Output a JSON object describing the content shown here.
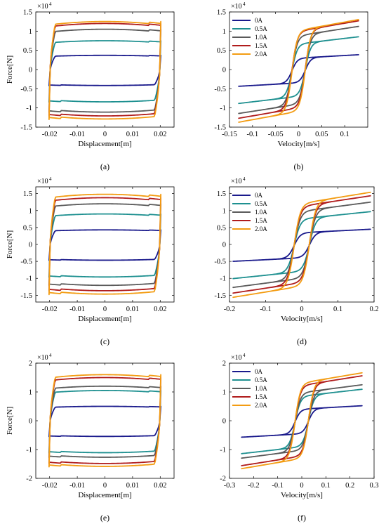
{
  "colors": {
    "0A": "#1a1a8c",
    "0.5A": "#1e9090",
    "1.0A": "#5a5a5a",
    "1.5A": "#b01c1c",
    "2.0A": "#f39c12"
  },
  "chart_data": [
    {
      "id": "a",
      "type": "line",
      "panel_label": "(a)",
      "xlabel": "Displacement[m]",
      "ylabel": "Force[N]",
      "exponent": "4",
      "xlim": [
        -0.025,
        0.025
      ],
      "ylim": [
        -1.5,
        1.5
      ],
      "xticks": [
        -0.02,
        -0.01,
        0,
        0.01,
        0.02
      ],
      "xtick_labels": [
        "-0.02",
        "-0.01",
        "0",
        "0.01",
        "0.02"
      ],
      "yticks": [
        -1.5,
        -1,
        -0.5,
        0,
        0.5,
        1,
        1.5
      ],
      "ytick_labels": [
        "-1.5",
        "-1",
        "-0.5",
        "0",
        "0.5",
        "1",
        "1.5"
      ],
      "legend": false,
      "series": [
        {
          "name": "0A",
          "values": [
            0.37,
            -0.42
          ]
        },
        {
          "name": "0.5A",
          "values": [
            0.75,
            -0.85
          ]
        },
        {
          "name": "1.0A",
          "values": [
            1.05,
            -1.12
          ]
        },
        {
          "name": "1.5A",
          "values": [
            1.2,
            -1.22
          ]
        },
        {
          "name": "2.0A",
          "values": [
            1.25,
            -1.3
          ]
        }
      ]
    },
    {
      "id": "b",
      "type": "line",
      "panel_label": "(b)",
      "xlabel": "Velocity[m/s]",
      "ylabel": "",
      "exponent": "4",
      "xlim": [
        -0.15,
        0.15
      ],
      "ylim": [
        -1.5,
        1.5
      ],
      "xticks": [
        -0.15,
        -0.1,
        -0.05,
        0,
        0.05,
        0.1
      ],
      "xtick_labels": [
        "-0.15",
        "-0.1",
        "-0.05",
        "0",
        "0.05",
        "0.1"
      ],
      "yticks": [
        -1.5,
        -1,
        -0.5,
        0,
        0.5,
        1,
        1.5
      ],
      "ytick_labels": [
        "-1.5",
        "-1",
        "-0.5",
        "0",
        "0.5",
        "1",
        "1.5"
      ],
      "legend": true,
      "legend_position": "top-left",
      "vmax": 0.13,
      "series": [
        {
          "name": "0A",
          "values": [
            0.37,
            -0.42
          ]
        },
        {
          "name": "0.5A",
          "values": [
            0.82,
            -0.85
          ]
        },
        {
          "name": "1.0A",
          "values": [
            1.08,
            -1.1
          ]
        },
        {
          "name": "1.5A",
          "values": [
            1.22,
            -1.22
          ]
        },
        {
          "name": "2.0A",
          "values": [
            1.25,
            -1.32
          ]
        }
      ]
    },
    {
      "id": "c",
      "type": "line",
      "panel_label": "(c)",
      "xlabel": "Displacement[m]",
      "ylabel": "Force[N]",
      "exponent": "4",
      "xlim": [
        -0.025,
        0.025
      ],
      "ylim": [
        -1.7,
        1.7
      ],
      "xticks": [
        -0.02,
        -0.01,
        0,
        0.01,
        0.02
      ],
      "xtick_labels": [
        "-0.02",
        "-0.01",
        "0",
        "0.01",
        "0.02"
      ],
      "yticks": [
        -1.5,
        -1,
        -0.5,
        0,
        0.5,
        1,
        1.5
      ],
      "ytick_labels": [
        "-1.5",
        "-1",
        "-0.5",
        "0",
        "0.5",
        "1",
        "1.5"
      ],
      "legend": false,
      "series": [
        {
          "name": "0A",
          "values": [
            0.43,
            -0.47
          ]
        },
        {
          "name": "0.5A",
          "values": [
            0.9,
            -0.97
          ]
        },
        {
          "name": "1.0A",
          "values": [
            1.2,
            -1.22
          ]
        },
        {
          "name": "1.5A",
          "values": [
            1.38,
            -1.38
          ]
        },
        {
          "name": "2.0A",
          "values": [
            1.48,
            -1.48
          ]
        }
      ]
    },
    {
      "id": "d",
      "type": "line",
      "panel_label": "(d)",
      "xlabel": "Velocity[m/s]",
      "ylabel": "",
      "exponent": "4",
      "xlim": [
        -0.2,
        0.2
      ],
      "ylim": [
        -1.7,
        1.7
      ],
      "xticks": [
        -0.2,
        -0.1,
        0,
        0.1,
        0.2
      ],
      "xtick_labels": [
        "-0.2",
        "-0.1",
        "0",
        "0.1",
        "0.2"
      ],
      "yticks": [
        -1.5,
        -1,
        -0.5,
        0,
        0.5,
        1,
        1.5
      ],
      "ytick_labels": [
        "-1.5",
        "-1",
        "-0.5",
        "0",
        "0.5",
        "1",
        "1.5"
      ],
      "legend": true,
      "legend_position": "top-left",
      "vmax": 0.19,
      "series": [
        {
          "name": "0A",
          "values": [
            0.43,
            -0.48
          ]
        },
        {
          "name": "0.5A",
          "values": [
            0.93,
            -0.97
          ]
        },
        {
          "name": "1.0A",
          "values": [
            1.2,
            -1.22
          ]
        },
        {
          "name": "1.5A",
          "values": [
            1.38,
            -1.38
          ]
        },
        {
          "name": "2.0A",
          "values": [
            1.48,
            -1.5
          ]
        }
      ]
    },
    {
      "id": "e",
      "type": "line",
      "panel_label": "(e)",
      "xlabel": "Displacement[m]",
      "ylabel": "Force[N]",
      "exponent": "4",
      "xlim": [
        -0.025,
        0.025
      ],
      "ylim": [
        -2,
        2
      ],
      "xticks": [
        -0.02,
        -0.01,
        0,
        0.01,
        0.02
      ],
      "xtick_labels": [
        "-0.02",
        "-0.01",
        "0",
        "0.01",
        "0.02"
      ],
      "yticks": [
        -2,
        -1,
        0,
        1,
        2
      ],
      "ytick_labels": [
        "-2",
        "-1",
        "0",
        "1",
        "2"
      ],
      "legend": false,
      "series": [
        {
          "name": "0A",
          "values": [
            0.5,
            -0.55
          ]
        },
        {
          "name": "0.5A",
          "values": [
            1.05,
            -1.12
          ]
        },
        {
          "name": "1.0A",
          "values": [
            1.2,
            -1.28
          ]
        },
        {
          "name": "1.5A",
          "values": [
            1.5,
            -1.5
          ]
        },
        {
          "name": "2.0A",
          "values": [
            1.6,
            -1.6
          ]
        }
      ]
    },
    {
      "id": "f",
      "type": "line",
      "panel_label": "(f)",
      "xlabel": "Velocity[m/s]",
      "ylabel": "",
      "exponent": "4",
      "xlim": [
        -0.3,
        0.3
      ],
      "ylim": [
        -2,
        2
      ],
      "xticks": [
        -0.3,
        -0.2,
        -0.1,
        0,
        0.1,
        0.2,
        0.3
      ],
      "xtick_labels": [
        "-0.3",
        "-0.2",
        "-0.1",
        "0",
        "0.1",
        "0.2",
        "0.3"
      ],
      "yticks": [
        -2,
        -1,
        0,
        1,
        2
      ],
      "ytick_labels": [
        "-2",
        "-1",
        "0",
        "1",
        "2"
      ],
      "legend": true,
      "legend_position": "top-left",
      "vmax": 0.25,
      "series": [
        {
          "name": "0A",
          "values": [
            0.5,
            -0.55
          ]
        },
        {
          "name": "0.5A",
          "values": [
            1.05,
            -1.1
          ]
        },
        {
          "name": "1.0A",
          "values": [
            1.2,
            -1.25
          ]
        },
        {
          "name": "1.5A",
          "values": [
            1.5,
            -1.5
          ]
        },
        {
          "name": "2.0A",
          "values": [
            1.6,
            -1.6
          ]
        }
      ]
    }
  ]
}
